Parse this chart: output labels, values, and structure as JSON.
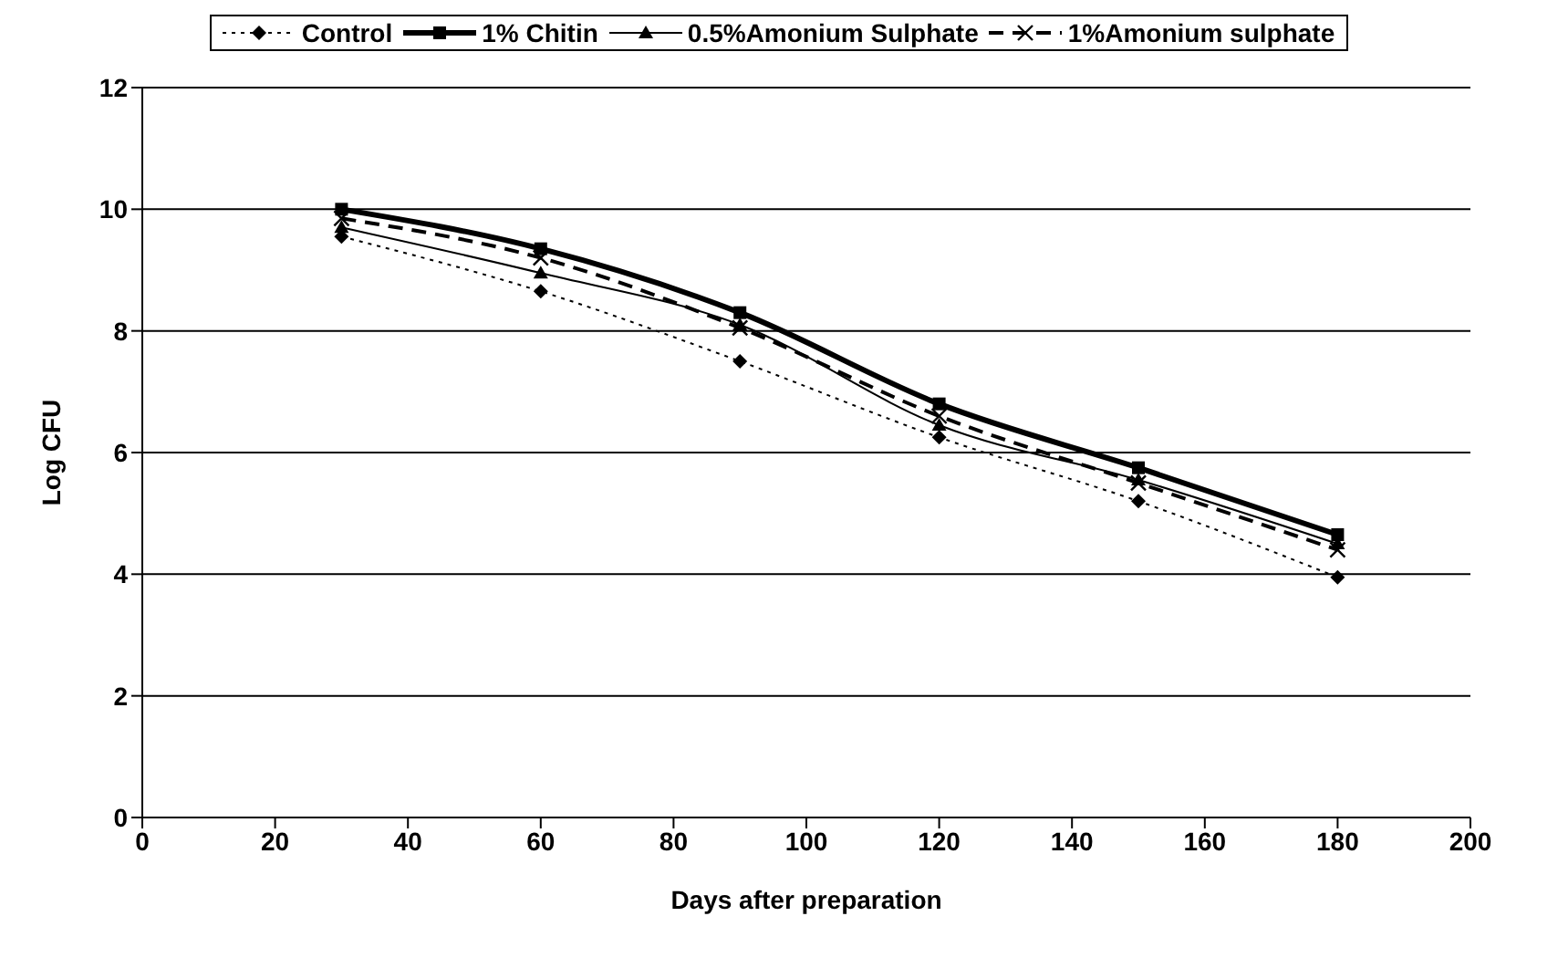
{
  "chart_data": {
    "type": "line",
    "xlabel": "Days after preparation",
    "ylabel": "Log CFU",
    "x": [
      30,
      60,
      90,
      120,
      150,
      180
    ],
    "series": [
      {
        "name": "Control",
        "color": "#000000",
        "values": [
          9.55,
          8.65,
          7.5,
          6.25,
          5.2,
          3.95
        ],
        "marker": "diamond",
        "line_style": "dotted"
      },
      {
        "name": "1% Chitin",
        "color": "#000000",
        "values": [
          10.0,
          9.35,
          8.3,
          6.8,
          5.75,
          4.65
        ],
        "marker": "square",
        "line_style": "solid"
      },
      {
        "name": "0.5%Amonium Sulphate",
        "color": "#000000",
        "values": [
          9.7,
          8.95,
          8.1,
          6.45,
          5.55,
          4.5
        ],
        "marker": "triangle",
        "line_style": "solid"
      },
      {
        "name": "1%Amonium sulphate",
        "color": "#000000",
        "values": [
          9.85,
          9.2,
          8.05,
          6.6,
          5.5,
          4.4
        ],
        "marker": "cross",
        "line_style": "dashed"
      }
    ],
    "xlim": [
      0,
      200
    ],
    "xticks": [
      0,
      20,
      40,
      60,
      80,
      100,
      120,
      140,
      160,
      180,
      200
    ],
    "ylim": [
      0,
      12
    ],
    "yticks": [
      0,
      2,
      4,
      6,
      8,
      10,
      12
    ],
    "grid": "y",
    "legend": "top"
  }
}
